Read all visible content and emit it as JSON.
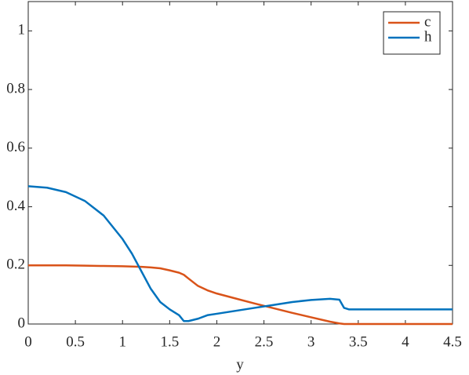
{
  "chart_data": {
    "type": "line",
    "xlabel": "y",
    "x": [
      0,
      0.2,
      0.4,
      0.6,
      0.8,
      1.0,
      1.1,
      1.2,
      1.3,
      1.4,
      1.5,
      1.6,
      1.65,
      1.7,
      1.8,
      1.9,
      2.0,
      2.2,
      2.4,
      2.6,
      2.8,
      3.0,
      3.2,
      3.3,
      3.35,
      3.4,
      3.6,
      4.0,
      4.5
    ],
    "series": [
      {
        "name": "c",
        "color": "#d95319",
        "values": [
          0.2,
          0.2,
          0.2,
          0.199,
          0.198,
          0.197,
          0.196,
          0.195,
          0.193,
          0.19,
          0.183,
          0.175,
          0.168,
          0.155,
          0.13,
          0.115,
          0.104,
          0.087,
          0.07,
          0.054,
          0.038,
          0.023,
          0.008,
          0.002,
          0,
          0,
          0,
          0,
          0
        ]
      },
      {
        "name": "h",
        "color": "#0072bd",
        "values": [
          0.47,
          0.465,
          0.45,
          0.42,
          0.37,
          0.29,
          0.24,
          0.18,
          0.12,
          0.075,
          0.05,
          0.03,
          0.01,
          0.01,
          0.018,
          0.03,
          0.035,
          0.045,
          0.055,
          0.065,
          0.075,
          0.082,
          0.086,
          0.083,
          0.055,
          0.05,
          0.05,
          0.05,
          0.05
        ]
      }
    ],
    "xlim": [
      0,
      4.5
    ],
    "xticks": [
      0,
      0.5,
      1,
      1.5,
      2,
      2.5,
      3,
      3.5,
      4,
      4.5
    ],
    "ylim": [
      0,
      1.1
    ],
    "yticks": [
      0,
      0.2,
      0.4,
      0.6,
      0.8,
      1
    ],
    "legend": "top-right"
  }
}
